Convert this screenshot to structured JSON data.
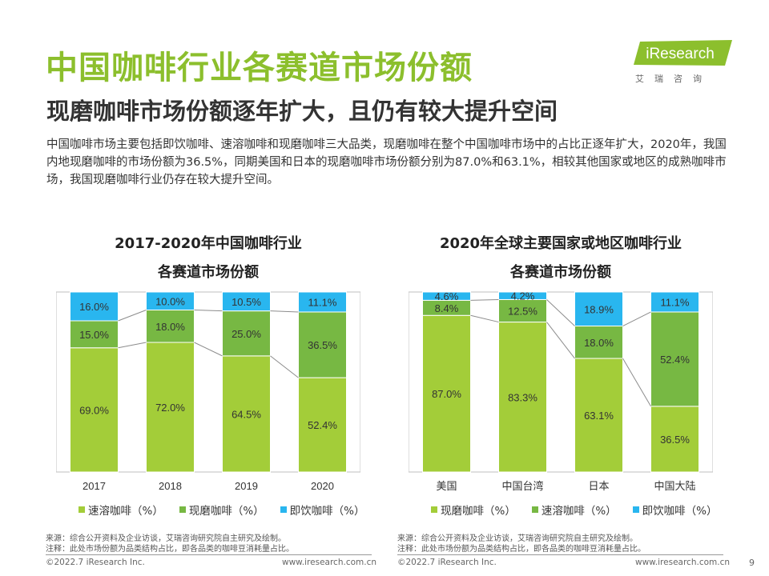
{
  "header": {
    "title": "中国咖啡行业各赛道市场份额",
    "subtitle": "现磨咖啡市场份额逐年扩大，且仍有较大提升空间",
    "intro": "中国咖啡市场主要包括即饮咖啡、速溶咖啡和现磨咖啡三大品类，现磨咖啡在整个中国咖啡市场中的占比正逐年扩大，2020年，我国内地现磨咖啡的市场份额为36.5%，同期美国和日本的现磨咖啡市场份额分别为87.0%和63.1%，相较其他国家或地区的成熟咖啡市场，我国现磨咖啡行业仍存在较大提升空间。"
  },
  "logo": {
    "text": "iResearch",
    "cn": "艾瑞咨询"
  },
  "colors": {
    "title_green": "#8cbf2d",
    "light_green": "#a3cd39",
    "mid_green": "#77b843",
    "cyan": "#29b6ef"
  },
  "chart_data": [
    {
      "type": "bar",
      "stacked": true,
      "title_line1": "2017-2020年中国咖啡行业",
      "title_line2": "各赛道市场份额",
      "categories": [
        "2017",
        "2018",
        "2019",
        "2020"
      ],
      "series": [
        {
          "name": "速溶咖啡（%）",
          "color": "#a3cd39",
          "values": [
            69.0,
            72.0,
            64.5,
            52.4
          ],
          "labels": [
            "69.0%",
            "72.0%",
            "64.5%",
            "52.4%"
          ]
        },
        {
          "name": "现磨咖啡（%）",
          "color": "#77b843",
          "values": [
            15.0,
            18.0,
            25.0,
            36.5
          ],
          "labels": [
            "15.0%",
            "18.0%",
            "25.0%",
            "36.5%"
          ]
        },
        {
          "name": "即饮咖啡（%）",
          "color": "#29b6ef",
          "values": [
            16.0,
            10.0,
            10.5,
            11.1
          ],
          "labels": [
            "16.0%",
            "10.0%",
            "10.5%",
            "11.1%"
          ]
        }
      ],
      "ylim": [
        0,
        100
      ],
      "connectors": true,
      "legend": "bottom"
    },
    {
      "type": "bar",
      "stacked": true,
      "title_line1": "2020年全球主要国家或地区咖啡行业",
      "title_line2": "各赛道市场份额",
      "categories": [
        "美国",
        "中国台湾",
        "日本",
        "中国大陆"
      ],
      "series": [
        {
          "name": "现磨咖啡（%）",
          "color": "#a3cd39",
          "values": [
            87.0,
            83.3,
            63.1,
            36.5
          ],
          "labels": [
            "87.0%",
            "83.3%",
            "63.1%",
            "36.5%"
          ]
        },
        {
          "name": "速溶咖啡（%）",
          "color": "#77b843",
          "values": [
            8.4,
            12.5,
            18.0,
            52.4
          ],
          "labels": [
            "8.4%",
            "12.5%",
            "18.0%",
            "52.4%"
          ]
        },
        {
          "name": "即饮咖啡（%）",
          "color": "#29b6ef",
          "values": [
            4.6,
            4.2,
            18.9,
            11.1
          ],
          "labels": [
            "4.6%",
            "4.2%",
            "18.9%",
            "11.1%"
          ]
        }
      ],
      "ylim": [
        0,
        100
      ],
      "connectors": true,
      "legend": "bottom"
    }
  ],
  "footer": {
    "source_line1": "来源：综合公开资料及企业访谈，艾瑞咨询研究院自主研究及绘制。",
    "source_line2": "注释：此处市场份额为品类结构占比，即各品类的咖啡豆消耗量占比。",
    "copyright": "©2022.7 iResearch Inc.",
    "website": "www.iresearch.com.cn",
    "page": "9"
  }
}
